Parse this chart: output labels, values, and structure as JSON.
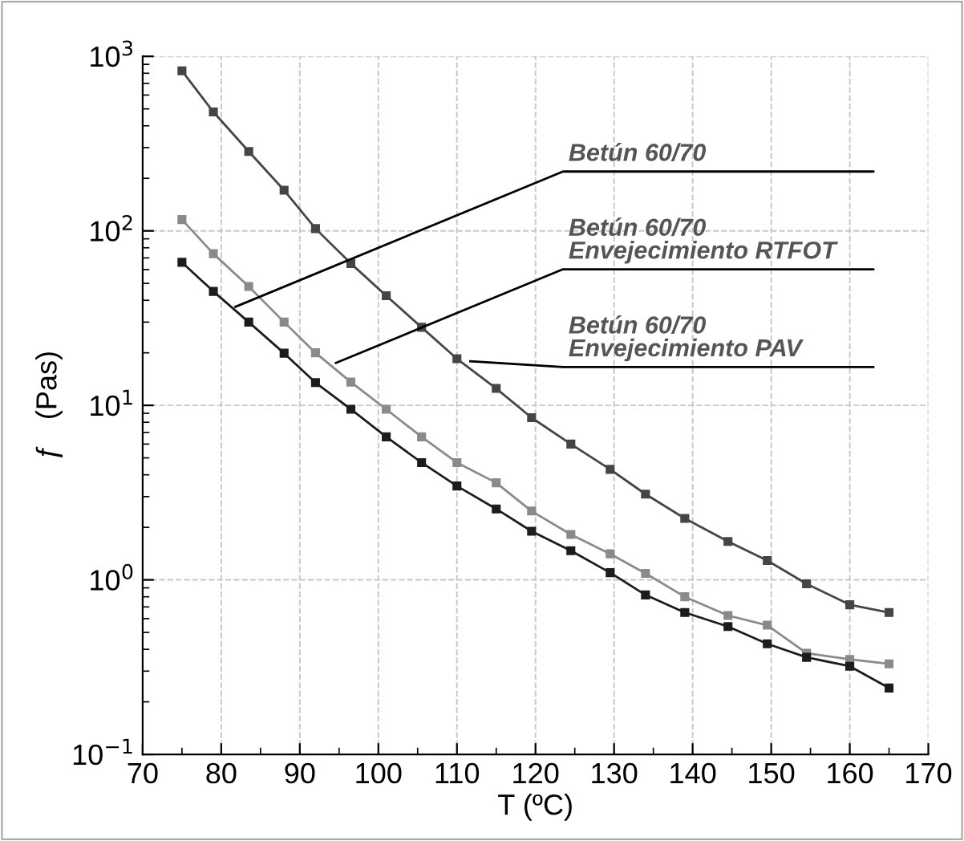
{
  "chart_data": {
    "type": "line",
    "xlabel": "T (ºC)",
    "ylabel": "ƒ   (Pas)",
    "log": "y",
    "grid": true,
    "marker": "square",
    "line_style": "solid",
    "xlim": [
      70,
      170
    ],
    "xticks": [
      70,
      80,
      90,
      100,
      110,
      120,
      130,
      140,
      150,
      160,
      170
    ],
    "ylim": [
      0.1,
      1000
    ],
    "yticks": [
      {
        "value": 0.1,
        "label": "10$^{−1}$"
      },
      {
        "value": 1,
        "label": "10$^{0}$"
      },
      {
        "value": 10,
        "label": "10$^{1}$"
      },
      {
        "value": 100,
        "label": "10$^{2}$"
      },
      {
        "value": 1000,
        "label": "10$^{3}$"
      }
    ],
    "x": [
      75,
      79,
      83.5,
      88,
      92,
      96.5,
      101,
      105.5,
      110,
      115,
      119.5,
      124.5,
      129.5,
      134,
      139,
      144.5,
      149.5,
      154.5,
      160,
      165
    ],
    "series": [
      {
        "color": "#454545",
        "values": [
          826,
          480,
          285,
          171,
          103,
          65,
          42.5,
          28,
          18.5,
          12.5,
          8.5,
          6.0,
          4.3,
          3.1,
          2.25,
          1.66,
          1.29,
          0.95,
          0.72,
          0.65
        ]
      },
      {
        "color": "#8a8a8a",
        "values": [
          116,
          74,
          48,
          30,
          20,
          13.6,
          9.5,
          6.6,
          4.7,
          3.6,
          2.48,
          1.82,
          1.41,
          1.09,
          0.8,
          0.625,
          0.55,
          0.38,
          0.35,
          0.33
        ]
      },
      {
        "color": "#1c1c1c",
        "values": [
          66,
          45,
          30,
          19.9,
          13.5,
          9.5,
          6.6,
          4.7,
          3.45,
          2.55,
          1.9,
          1.47,
          1.1,
          0.82,
          0.65,
          0.54,
          0.43,
          0.36,
          0.32,
          0.24
        ]
      }
    ],
    "annotations": [
      {
        "text": "Betún 60/70",
        "x": 81.8,
        "y": 36.7
      },
      {
        "text": "Betún 60/70\nEnvejecimiento RTFOT",
        "x": 94.6,
        "y": 17.5
      },
      {
        "text": "Betún 60/70\nEnvejecimiento PAV",
        "x": 111.7,
        "y": 17.9
      }
    ]
  }
}
